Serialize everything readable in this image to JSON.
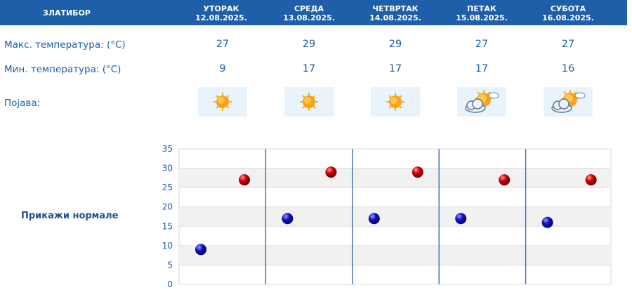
{
  "header": {
    "location": "ЗЛАТИБОР",
    "days": [
      {
        "name": "УТОРАК",
        "date": "12.08.2025."
      },
      {
        "name": "СРЕДА",
        "date": "13.08.2025."
      },
      {
        "name": "ЧЕТВРТАК",
        "date": "14.08.2025."
      },
      {
        "name": "ПЕТАК",
        "date": "15.08.2025."
      },
      {
        "name": "СУБОТА",
        "date": "16.08.2025."
      }
    ]
  },
  "rows": {
    "max_label": "Макс. температура: (°C)",
    "min_label": "Мин. температура: (°C)",
    "weather_label": "Појава:"
  },
  "weather_icons": [
    "sun-icon",
    "sun-icon",
    "sun-icon",
    "partly-cloudy-icon",
    "partly-cloudy-icon"
  ],
  "show_normals_label": "Прикажи нормале",
  "colors": {
    "header": "#1f5ea9",
    "max": "#cc0000",
    "min": "#0a0aaa",
    "text": "#1f5ea9"
  },
  "chart_data": {
    "type": "scatter",
    "ylim": [
      0,
      35
    ],
    "yticks": [
      0,
      5,
      10,
      15,
      20,
      25,
      30,
      35
    ],
    "grid": true,
    "series": [
      {
        "values": [
          27,
          29,
          29,
          27,
          27
        ]
      },
      {
        "values": [
          9,
          17,
          17,
          17,
          16
        ]
      }
    ]
  }
}
